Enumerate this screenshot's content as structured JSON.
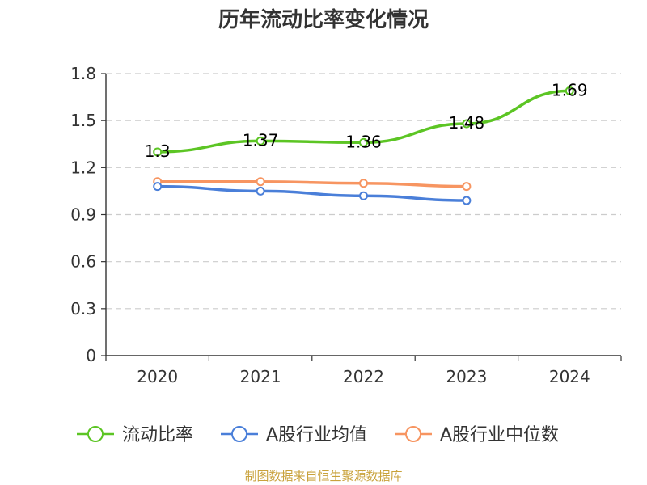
{
  "chart_data": {
    "type": "line",
    "title": "历年流动比率变化情况",
    "xlabel": "",
    "ylabel": "",
    "categories": [
      "2020",
      "2021",
      "2022",
      "2023",
      "2024"
    ],
    "ylim": [
      0,
      1.8
    ],
    "yticks": [
      "0",
      "0.3",
      "0.6",
      "0.9",
      "1.2",
      "1.5",
      "1.8"
    ],
    "grid": true,
    "legend_position": "bottom",
    "series": [
      {
        "name": "流动比率",
        "color": "#5cc524",
        "values": [
          1.3,
          1.37,
          1.36,
          1.48,
          1.69
        ],
        "labels": [
          "1.3",
          "1.37",
          "1.36",
          "1.48",
          "1.69"
        ],
        "show_labels": true
      },
      {
        "name": "A股行业均值",
        "color": "#4a7fd9",
        "values": [
          1.08,
          1.05,
          1.02,
          0.99,
          null
        ],
        "show_labels": false
      },
      {
        "name": "A股行业中位数",
        "color": "#f79561",
        "values": [
          1.11,
          1.11,
          1.1,
          1.08,
          null
        ],
        "show_labels": false
      }
    ],
    "source": "制图数据来自恒生聚源数据库"
  }
}
